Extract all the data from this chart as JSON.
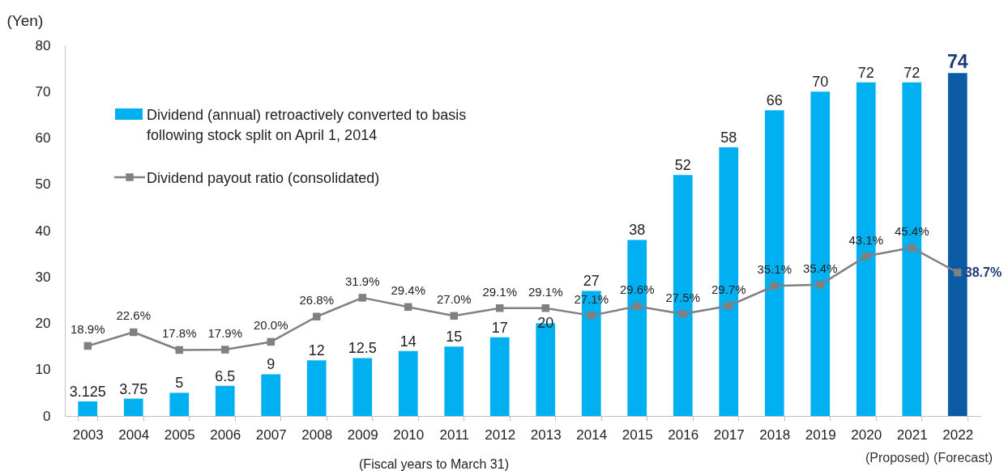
{
  "chart_data": {
    "type": "bar",
    "xlabel": "(Fiscal years to March 31)",
    "ylabel": "(Yen)",
    "categories": [
      "2003",
      "2004",
      "2005",
      "2006",
      "2007",
      "2008",
      "2009",
      "2010",
      "2011",
      "2012",
      "2013",
      "2014",
      "2015",
      "2016",
      "2017",
      "2018",
      "2019",
      "2020",
      "2021",
      "2022"
    ],
    "ylim": [
      0,
      80
    ],
    "yticks": [
      0,
      10,
      20,
      30,
      40,
      50,
      60,
      70,
      80
    ],
    "y2lim": [
      0,
      100
    ],
    "data_labels": true,
    "legend": "top left",
    "marker": "square",
    "annotations": [
      "(Proposed)",
      "(Forecast)"
    ],
    "series": [
      {
        "name": "Dividend (annual) retroactively converted to basis following stock split on April 1, 2014",
        "color": "#00b0f0",
        "colors": [
          "#00b0f0",
          "#00b0f0",
          "#00b0f0",
          "#00b0f0",
          "#00b0f0",
          "#00b0f0",
          "#00b0f0",
          "#00b0f0",
          "#00b0f0",
          "#00b0f0",
          "#00b0f0",
          "#00b0f0",
          "#00b0f0",
          "#00b0f0",
          "#00b0f0",
          "#00b0f0",
          "#00b0f0",
          "#00b0f0",
          "#00b0f0",
          "#0b5aa6"
        ],
        "values": [
          3.125,
          3.75,
          5,
          6.5,
          9,
          12,
          12.5,
          14,
          15,
          17,
          20,
          27,
          38,
          52,
          58,
          66,
          70,
          72,
          72,
          74
        ]
      },
      {
        "name": "Dividend payout ratio (consolidated)",
        "type": "line",
        "axis": "y2",
        "color": "#808080",
        "values": [
          18.9,
          22.6,
          17.8,
          17.9,
          20.0,
          26.8,
          31.9,
          29.4,
          27.0,
          29.1,
          29.1,
          27.1,
          29.6,
          27.5,
          29.7,
          35.1,
          35.4,
          43.1,
          45.4,
          38.7
        ],
        "value_labels": [
          "18.9%",
          "22.6%",
          "17.8%",
          "17.9%",
          "20.0%",
          "26.8%",
          "31.9%",
          "29.4%",
          "27.0%",
          "29.1%",
          "29.1%",
          "27.1%",
          "29.6%",
          "27.5%",
          "29.7%",
          "35.1%",
          "35.4%",
          "43.1%",
          "45.4%",
          "38.7%"
        ]
      }
    ]
  }
}
